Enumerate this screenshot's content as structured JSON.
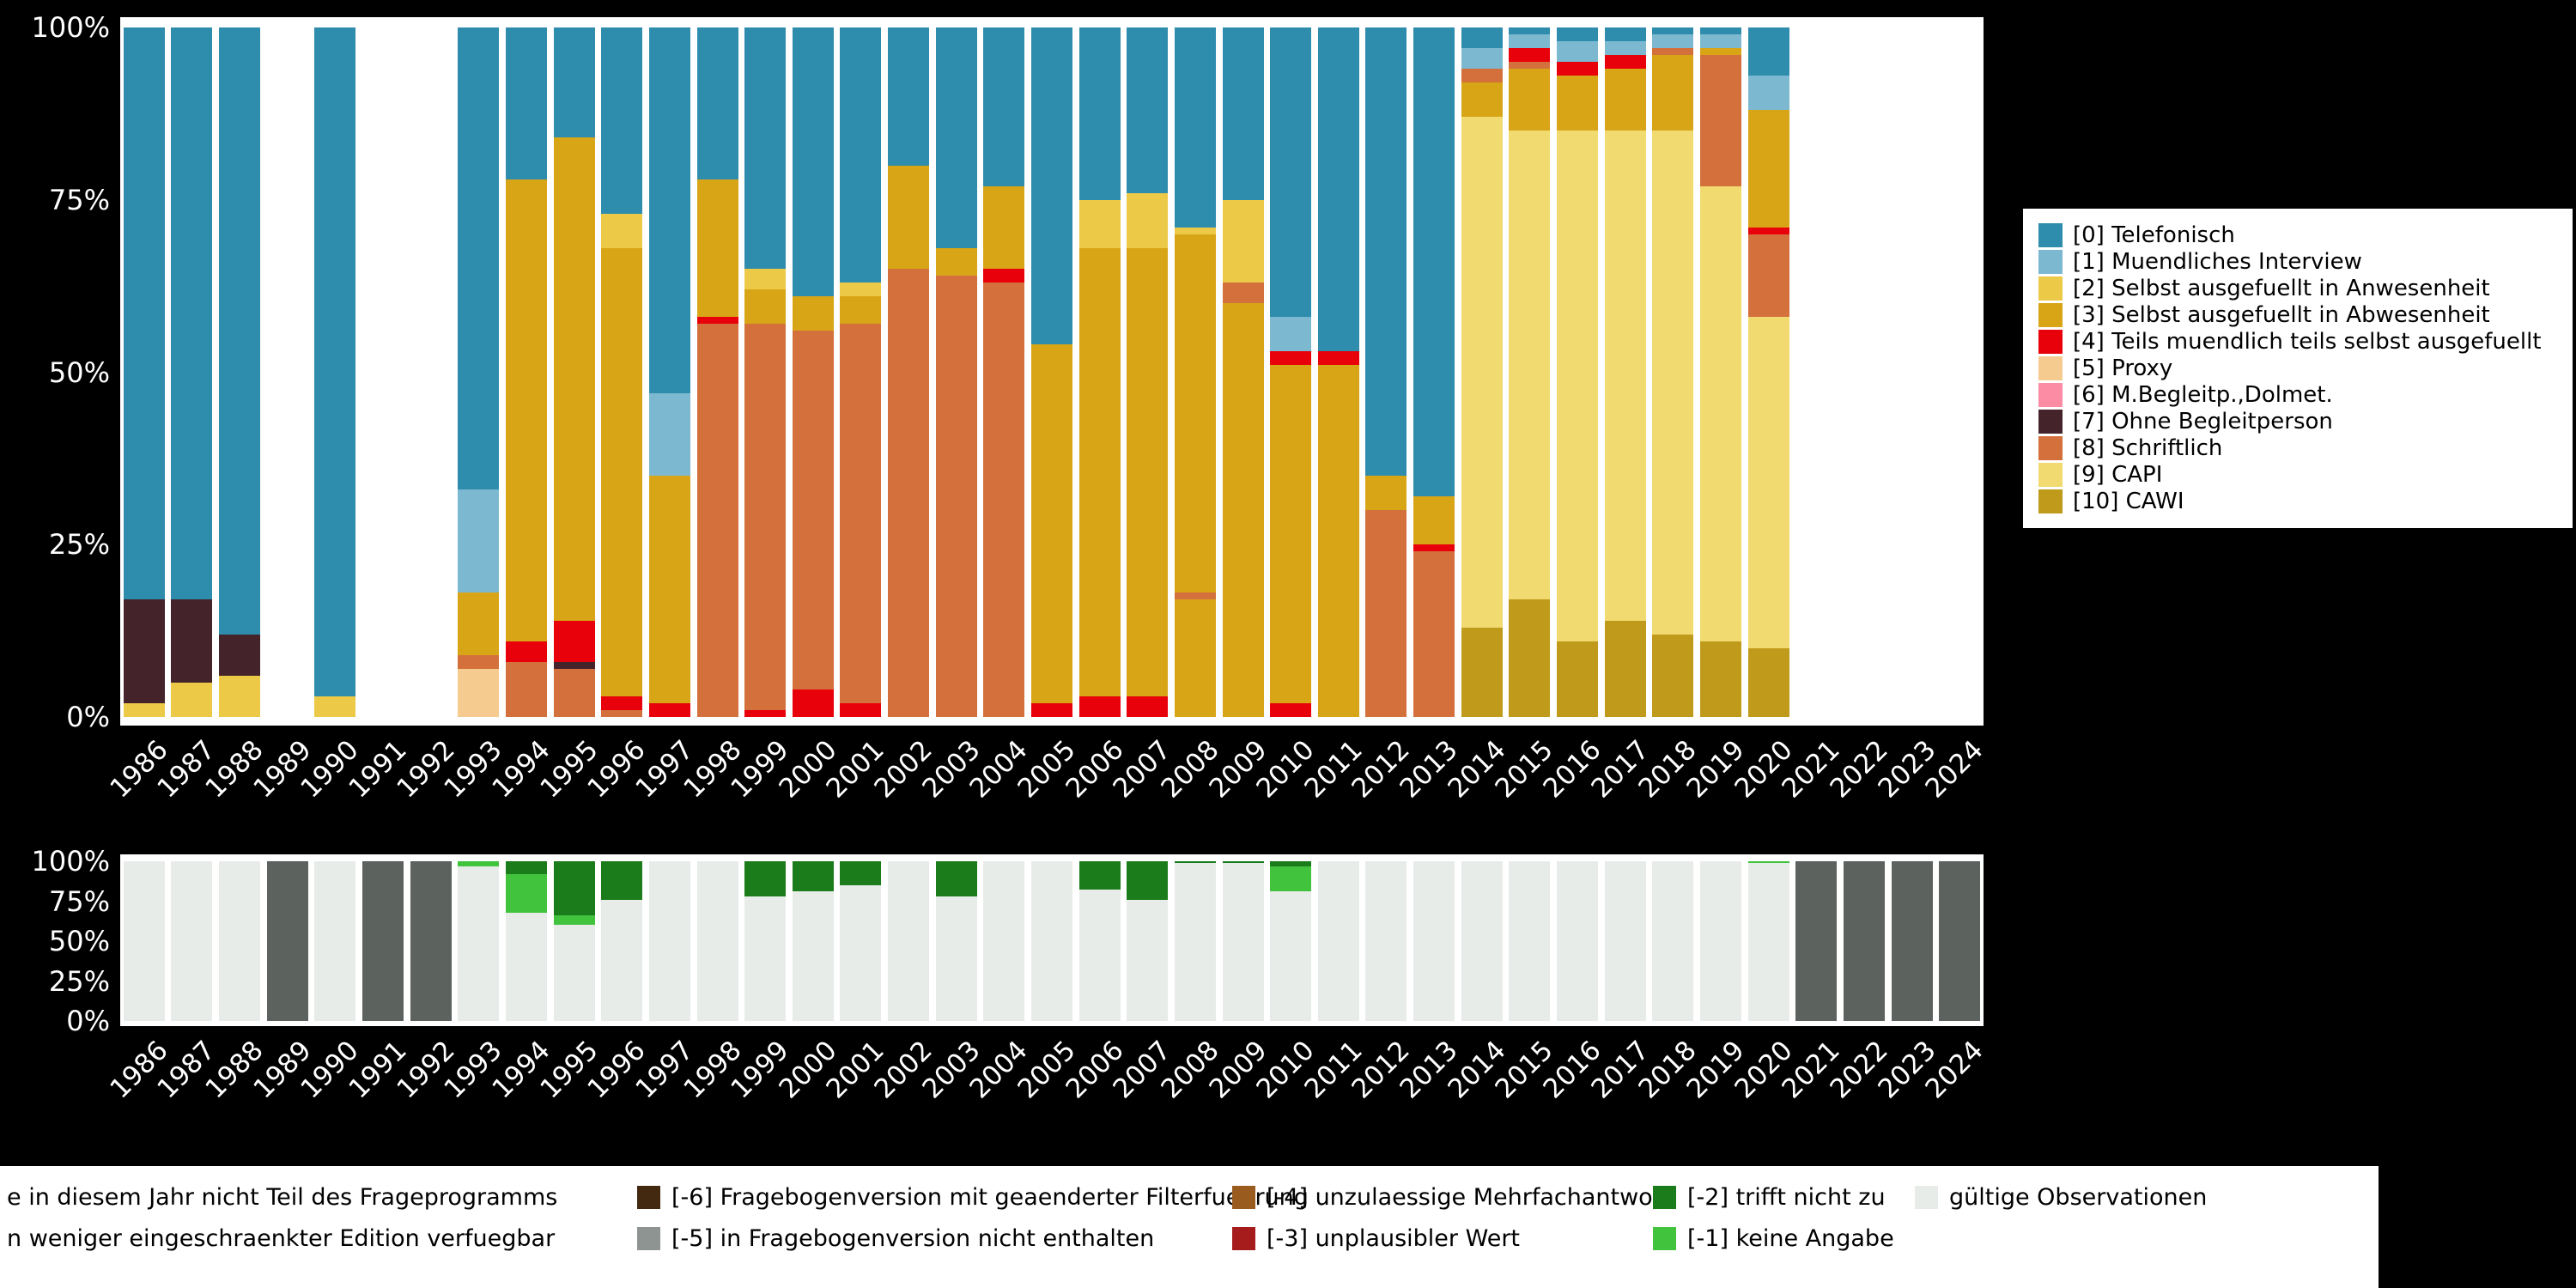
{
  "background_color": "#000000",
  "accent_colors": {
    "panel_bg": "#ffffff",
    "axis_text": "#ffffff",
    "legend_text": "#000000"
  },
  "chart_data": [
    {
      "type": "bar",
      "stacked": true,
      "unit": "percent",
      "title": "",
      "xlabel": "",
      "ylabel": "",
      "ylim": [
        0,
        100
      ],
      "grid": false,
      "legend_position": "right",
      "y_tick_labels": [
        "100%",
        "75%",
        "50%",
        "25%",
        "0%"
      ],
      "y_tick_values": [
        100,
        75,
        50,
        25,
        0
      ],
      "years": [
        "1986",
        "1987",
        "1988",
        "1989",
        "1990",
        "1991",
        "1992",
        "1993",
        "1994",
        "1995",
        "1996",
        "1997",
        "1998",
        "1999",
        "2000",
        "2001",
        "2002",
        "2003",
        "2004",
        "2005",
        "2006",
        "2007",
        "2008",
        "2009",
        "2010",
        "2011",
        "2012",
        "2013",
        "2014",
        "2015",
        "2016",
        "2017",
        "2018",
        "2019",
        "2020",
        "2021",
        "2022",
        "2023",
        "2024"
      ],
      "categories": [
        {
          "label": "[0] Telefonisch",
          "color": "#2E8CAD"
        },
        {
          "label": "[1] Muendliches Interview",
          "color": "#7DB8D1"
        },
        {
          "label": "[2] Selbst ausgefuellt in Anwesenheit",
          "color": "#EDC948"
        },
        {
          "label": "[3] Selbst ausgefuellt in Abwesenheit",
          "color": "#D8A517"
        },
        {
          "label": "[4] Teils muendlich teils selbst ausgefuellt",
          "color": "#E8000B"
        },
        {
          "label": "[5] Proxy",
          "color": "#F5CB8F"
        },
        {
          "label": "[6] M.Begleitp.,Dolmet.",
          "color": "#FB8CA4"
        },
        {
          "label": "[7] Ohne Begleitperson",
          "color": "#44232B"
        },
        {
          "label": "[8] Schriftlich",
          "color": "#D4703C"
        },
        {
          "label": "[9] CAPI",
          "color": "#F1DA70"
        },
        {
          "label": "[10] CAWI",
          "color": "#C09A1A"
        }
      ],
      "bars": [
        [
          [
            2,
            2
          ],
          [
            7,
            15
          ],
          [
            0,
            83
          ]
        ],
        [
          [
            2,
            5
          ],
          [
            7,
            12
          ],
          [
            0,
            83
          ]
        ],
        [
          [
            2,
            6
          ],
          [
            7,
            6
          ],
          [
            0,
            88
          ]
        ],
        [],
        [
          [
            2,
            3
          ],
          [
            0,
            97
          ]
        ],
        [],
        [],
        [
          [
            5,
            7
          ],
          [
            8,
            2
          ],
          [
            3,
            9
          ],
          [
            1,
            15
          ],
          [
            0,
            67
          ]
        ],
        [
          [
            8,
            8
          ],
          [
            4,
            3
          ],
          [
            3,
            67
          ],
          [
            0,
            22
          ]
        ],
        [
          [
            8,
            7
          ],
          [
            7,
            1
          ],
          [
            4,
            6
          ],
          [
            3,
            70
          ],
          [
            0,
            16
          ]
        ],
        [
          [
            8,
            1
          ],
          [
            4,
            2
          ],
          [
            3,
            65
          ],
          [
            2,
            5
          ],
          [
            0,
            27
          ]
        ],
        [
          [
            4,
            2
          ],
          [
            3,
            33
          ],
          [
            1,
            12
          ],
          [
            0,
            53
          ]
        ],
        [
          [
            8,
            57
          ],
          [
            4,
            1
          ],
          [
            3,
            20
          ],
          [
            0,
            22
          ]
        ],
        [
          [
            4,
            1
          ],
          [
            8,
            56
          ],
          [
            3,
            5
          ],
          [
            2,
            3
          ],
          [
            0,
            35
          ]
        ],
        [
          [
            4,
            4
          ],
          [
            8,
            52
          ],
          [
            3,
            5
          ],
          [
            0,
            39
          ]
        ],
        [
          [
            4,
            2
          ],
          [
            8,
            55
          ],
          [
            3,
            4
          ],
          [
            2,
            2
          ],
          [
            0,
            37
          ]
        ],
        [
          [
            8,
            65
          ],
          [
            3,
            15
          ],
          [
            0,
            20
          ]
        ],
        [
          [
            8,
            64
          ],
          [
            3,
            4
          ],
          [
            0,
            32
          ]
        ],
        [
          [
            8,
            63
          ],
          [
            4,
            2
          ],
          [
            3,
            12
          ],
          [
            0,
            23
          ]
        ],
        [
          [
            4,
            2
          ],
          [
            3,
            52
          ],
          [
            0,
            46
          ]
        ],
        [
          [
            4,
            3
          ],
          [
            3,
            65
          ],
          [
            2,
            7
          ],
          [
            0,
            25
          ]
        ],
        [
          [
            4,
            3
          ],
          [
            3,
            65
          ],
          [
            2,
            8
          ],
          [
            0,
            24
          ]
        ],
        [
          [
            3,
            17
          ],
          [
            8,
            1
          ],
          [
            3,
            52
          ],
          [
            2,
            1
          ],
          [
            0,
            29
          ]
        ],
        [
          [
            3,
            60
          ],
          [
            8,
            3
          ],
          [
            2,
            12
          ],
          [
            0,
            25
          ]
        ],
        [
          [
            4,
            2
          ],
          [
            3,
            49
          ],
          [
            4,
            2
          ],
          [
            1,
            5
          ],
          [
            0,
            42
          ]
        ],
        [
          [
            3,
            51
          ],
          [
            4,
            2
          ],
          [
            0,
            47
          ]
        ],
        [
          [
            8,
            30
          ],
          [
            3,
            5
          ],
          [
            0,
            65
          ]
        ],
        [
          [
            8,
            24
          ],
          [
            4,
            1
          ],
          [
            3,
            7
          ],
          [
            0,
            68
          ]
        ],
        [
          [
            10,
            13
          ],
          [
            9,
            74
          ],
          [
            3,
            5
          ],
          [
            8,
            2
          ],
          [
            1,
            3
          ],
          [
            0,
            3
          ]
        ],
        [
          [
            10,
            17
          ],
          [
            9,
            68
          ],
          [
            3,
            9
          ],
          [
            8,
            1
          ],
          [
            4,
            2
          ],
          [
            1,
            2
          ],
          [
            0,
            1
          ]
        ],
        [
          [
            10,
            11
          ],
          [
            9,
            74
          ],
          [
            3,
            8
          ],
          [
            4,
            2
          ],
          [
            1,
            3
          ],
          [
            0,
            2
          ]
        ],
        [
          [
            10,
            14
          ],
          [
            9,
            71
          ],
          [
            3,
            9
          ],
          [
            4,
            2
          ],
          [
            1,
            2
          ],
          [
            0,
            2
          ]
        ],
        [
          [
            10,
            12
          ],
          [
            9,
            73
          ],
          [
            3,
            11
          ],
          [
            8,
            1
          ],
          [
            1,
            2
          ],
          [
            0,
            1
          ]
        ],
        [
          [
            10,
            11
          ],
          [
            9,
            66
          ],
          [
            8,
            19
          ],
          [
            3,
            1
          ],
          [
            1,
            2
          ],
          [
            0,
            1
          ]
        ],
        [
          [
            10,
            10
          ],
          [
            9,
            48
          ],
          [
            8,
            12
          ],
          [
            4,
            1
          ],
          [
            3,
            17
          ],
          [
            1,
            5
          ],
          [
            0,
            7
          ]
        ],
        [],
        [],
        [],
        []
      ]
    },
    {
      "type": "bar",
      "stacked": true,
      "unit": "percent",
      "title": "",
      "xlabel": "",
      "ylabel": "",
      "ylim": [
        0,
        100
      ],
      "grid": false,
      "legend_position": "bottom",
      "y_tick_labels": [
        "100%",
        "75%",
        "50%",
        "25%",
        "0%"
      ],
      "y_tick_values": [
        100,
        75,
        50,
        25,
        0
      ],
      "years": [
        "1986",
        "1987",
        "1988",
        "1989",
        "1990",
        "1991",
        "1992",
        "1993",
        "1994",
        "1995",
        "1996",
        "1997",
        "1998",
        "1999",
        "2000",
        "2001",
        "2002",
        "2003",
        "2004",
        "2005",
        "2006",
        "2007",
        "2008",
        "2009",
        "2010",
        "2011",
        "2012",
        "2013",
        "2014",
        "2015",
        "2016",
        "2017",
        "2018",
        "2019",
        "2020",
        "2021",
        "2022",
        "2023",
        "2024"
      ],
      "categories": [
        {
          "label": "gültige Observationen",
          "color": "#E8ECE8"
        },
        {
          "label": "[-1] keine Angabe",
          "color": "#41C33E"
        },
        {
          "label": "[-2] trifft nicht zu",
          "color": "#1B7C1B"
        },
        {
          "label": "[-3] unplausibler Wert",
          "color": "#A61B1B"
        },
        {
          "label": "[-4] unzulaessige Mehrfachantwort",
          "color": "#9A5B1F"
        },
        {
          "label": "[-5] in Fragebogenversion nicht enthalten",
          "color": "#8E9492"
        },
        {
          "label": "[-6] Fragebogenversion mit geaenderter Filterfuehrung",
          "color": "#43290F"
        },
        {
          "label": "n weniger eingeschraenkter Edition verfuegbar",
          "color": "#5C625D"
        },
        {
          "label": "e in diesem Jahr nicht Teil des Frageprogramms",
          "color": "#5C625D"
        }
      ],
      "bars": [
        [
          [
            0,
            100
          ]
        ],
        [
          [
            0,
            100
          ]
        ],
        [
          [
            0,
            100
          ]
        ],
        [
          [
            8,
            100
          ]
        ],
        [
          [
            0,
            100
          ]
        ],
        [
          [
            8,
            100
          ]
        ],
        [
          [
            8,
            100
          ]
        ],
        [
          [
            0,
            97
          ],
          [
            1,
            3
          ]
        ],
        [
          [
            0,
            68
          ],
          [
            1,
            24
          ],
          [
            2,
            8
          ]
        ],
        [
          [
            0,
            60
          ],
          [
            1,
            6
          ],
          [
            2,
            34
          ]
        ],
        [
          [
            0,
            76
          ],
          [
            2,
            24
          ]
        ],
        [
          [
            0,
            100
          ]
        ],
        [
          [
            0,
            100
          ]
        ],
        [
          [
            0,
            78
          ],
          [
            2,
            22
          ]
        ],
        [
          [
            0,
            81
          ],
          [
            2,
            19
          ]
        ],
        [
          [
            0,
            85
          ],
          [
            2,
            15
          ]
        ],
        [
          [
            0,
            100
          ]
        ],
        [
          [
            0,
            78
          ],
          [
            2,
            22
          ]
        ],
        [
          [
            0,
            100
          ]
        ],
        [
          [
            0,
            100
          ]
        ],
        [
          [
            0,
            82
          ],
          [
            2,
            18
          ]
        ],
        [
          [
            0,
            76
          ],
          [
            2,
            24
          ]
        ],
        [
          [
            0,
            99
          ],
          [
            2,
            1
          ]
        ],
        [
          [
            0,
            99
          ],
          [
            2,
            1
          ]
        ],
        [
          [
            0,
            81
          ],
          [
            1,
            16
          ],
          [
            2,
            3
          ]
        ],
        [
          [
            0,
            100
          ]
        ],
        [
          [
            0,
            100
          ]
        ],
        [
          [
            0,
            100
          ]
        ],
        [
          [
            0,
            100
          ]
        ],
        [
          [
            0,
            100
          ]
        ],
        [
          [
            0,
            100
          ]
        ],
        [
          [
            0,
            100
          ]
        ],
        [
          [
            0,
            100
          ]
        ],
        [
          [
            0,
            100
          ]
        ],
        [
          [
            0,
            99
          ],
          [
            1,
            1
          ]
        ],
        [
          [
            7,
            100
          ]
        ],
        [
          [
            7,
            100
          ]
        ],
        [
          [
            7,
            100
          ]
        ],
        [
          [
            7,
            100
          ]
        ]
      ],
      "legend_rows": [
        [
          {
            "cat": 8,
            "swatch": false
          },
          {
            "cat": 6,
            "swatch": true
          },
          {
            "cat": 4,
            "swatch": true
          },
          {
            "cat": 2,
            "swatch": true
          },
          {
            "cat": 0,
            "swatch": true
          }
        ],
        [
          {
            "cat": 7,
            "swatch": false
          },
          {
            "cat": 5,
            "swatch": true
          },
          {
            "cat": 3,
            "swatch": true
          },
          {
            "cat": 1,
            "swatch": true
          }
        ]
      ]
    }
  ]
}
